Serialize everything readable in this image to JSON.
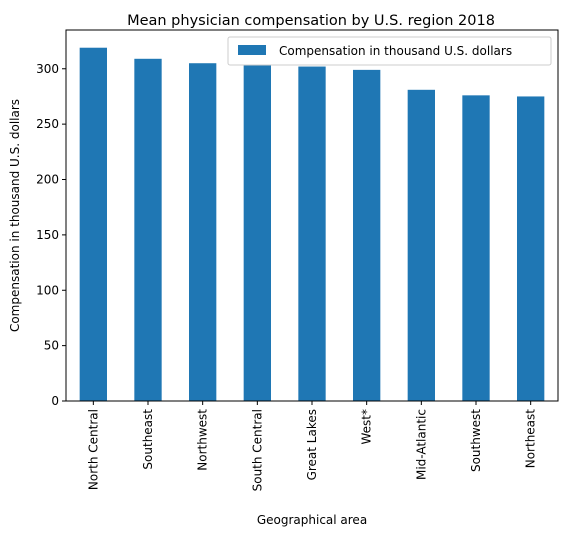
{
  "chart_data": {
    "type": "bar",
    "title": "Mean physician compensation by U.S. region 2018",
    "xlabel": "Geographical area",
    "ylabel": "Compensation in thousand U.S. dollars",
    "categories": [
      "North Central",
      "Southeast",
      "Northwest",
      "South Central",
      "Great Lakes",
      "West*",
      "Mid-Atlantic",
      "Southwest",
      "Northeast"
    ],
    "series": [
      {
        "name": "Compensation in thousand U.S. dollars",
        "values": [
          319,
          309,
          305,
          303,
          302,
          299,
          281,
          276,
          275
        ],
        "color": "#1f77b4"
      }
    ],
    "yticks": [
      0,
      50,
      100,
      150,
      200,
      250,
      300
    ],
    "ylim": [
      0,
      335
    ],
    "grid": false,
    "legend": "top-right"
  }
}
